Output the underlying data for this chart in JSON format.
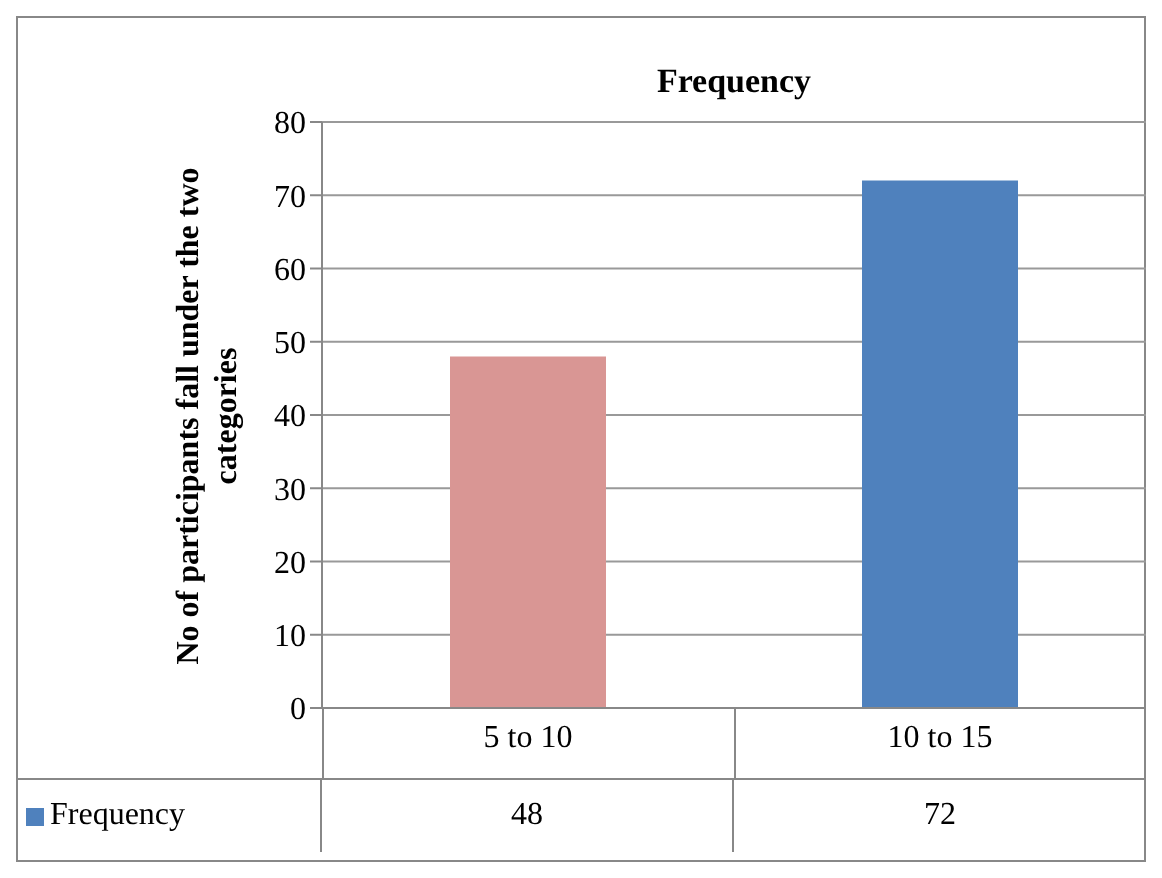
{
  "chart_data": {
    "type": "bar",
    "title": "Frequency",
    "ylabel": "No of participants fall under the two categories",
    "categories": [
      "5 to 10",
      "10 to 15"
    ],
    "series": [
      {
        "name": "Frequency",
        "color": "#4f81bd",
        "colors": [
          "#d99694",
          "#4f81bd"
        ],
        "values": [
          48,
          72
        ]
      }
    ],
    "ylim": [
      0,
      80
    ],
    "yticks": [
      0,
      10,
      20,
      30,
      40,
      50,
      60,
      70,
      80
    ],
    "grid": "y",
    "legend": "bottom",
    "data_labels": true
  }
}
